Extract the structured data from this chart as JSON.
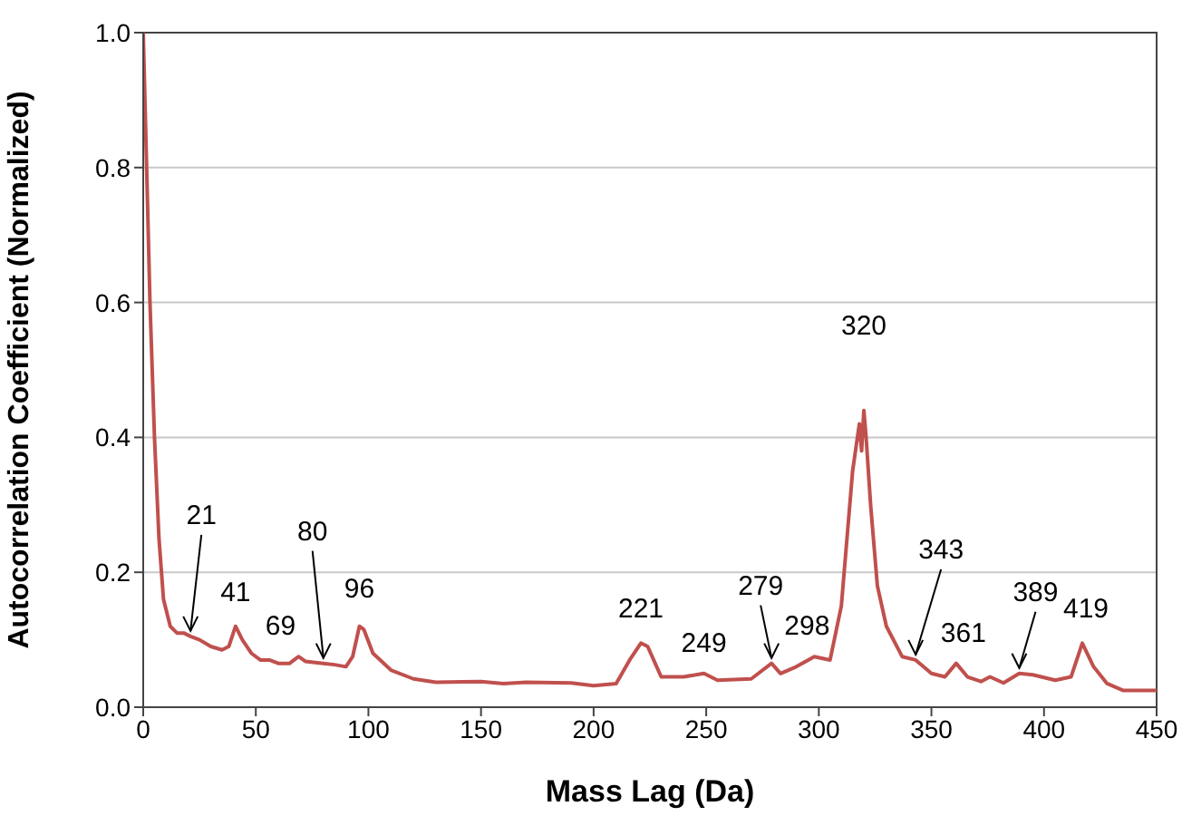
{
  "chart_data": {
    "type": "line",
    "xlabel": "Mass Lag (Da)",
    "ylabel": "Autocorrelation Coefficient (Normalized)",
    "xlim": [
      0,
      450
    ],
    "xticks": [
      0,
      50,
      100,
      150,
      200,
      250,
      300,
      350,
      400,
      450
    ],
    "ylim": [
      0,
      1
    ],
    "yticks": [
      {
        "value": 0,
        "label": "0.0"
      },
      0.2,
      0.4,
      0.6,
      0.8,
      {
        "value": 1,
        "label": "1.0"
      }
    ],
    "grid": "y",
    "marker": "none",
    "line_style": "solid",
    "x": [
      0,
      1,
      3,
      5,
      7,
      9,
      12,
      15,
      18,
      21,
      25,
      30,
      35,
      38,
      41,
      44,
      48,
      52,
      56,
      60,
      65,
      69,
      72,
      80,
      85,
      90,
      93,
      96,
      98,
      102,
      110,
      120,
      130,
      150,
      160,
      170,
      190,
      200,
      210,
      216,
      221,
      224,
      228,
      230,
      240,
      249,
      255,
      270,
      279,
      283,
      290,
      298,
      305,
      310,
      315,
      318,
      319,
      320,
      321,
      323,
      326,
      330,
      337,
      343,
      350,
      356,
      361,
      366,
      372,
      376,
      382,
      389,
      395,
      405,
      412,
      417,
      422,
      428,
      435,
      450
    ],
    "series": [
      {
        "color": "#c0504d",
        "values": [
          1.0,
          0.87,
          0.6,
          0.4,
          0.25,
          0.16,
          0.12,
          0.11,
          0.11,
          0.105,
          0.1,
          0.09,
          0.085,
          0.09,
          0.12,
          0.1,
          0.08,
          0.07,
          0.07,
          0.065,
          0.065,
          0.075,
          0.068,
          0.065,
          0.063,
          0.06,
          0.075,
          0.12,
          0.115,
          0.08,
          0.055,
          0.042,
          0.037,
          0.038,
          0.035,
          0.037,
          0.036,
          0.032,
          0.035,
          0.07,
          0.095,
          0.09,
          0.06,
          0.045,
          0.045,
          0.05,
          0.04,
          0.042,
          0.065,
          0.05,
          0.06,
          0.075,
          0.07,
          0.15,
          0.35,
          0.42,
          0.38,
          0.44,
          0.4,
          0.3,
          0.18,
          0.12,
          0.075,
          0.07,
          0.05,
          0.045,
          0.065,
          0.045,
          0.038,
          0.045,
          0.036,
          0.05,
          0.048,
          0.04,
          0.045,
          0.095,
          0.06,
          0.035,
          0.025,
          0.025
        ]
      }
    ],
    "annotations": [
      {
        "text": "21",
        "x": 21,
        "y": 0.105
      },
      {
        "text": "41",
        "x": 41,
        "y": 0.12
      },
      {
        "text": "69",
        "x": 69,
        "y": 0.075
      },
      {
        "text": "80",
        "x": 80,
        "y": 0.065
      },
      {
        "text": "96",
        "x": 96,
        "y": 0.12
      },
      {
        "text": "221",
        "x": 221,
        "y": 0.095
      },
      {
        "text": "249",
        "x": 249,
        "y": 0.05
      },
      {
        "text": "279",
        "x": 279,
        "y": 0.065
      },
      {
        "text": "298",
        "x": 298,
        "y": 0.075
      },
      {
        "text": "320",
        "x": 320,
        "y": 0.44
      },
      {
        "text": "343",
        "x": 343,
        "y": 0.07
      },
      {
        "text": "361",
        "x": 361,
        "y": 0.065
      },
      {
        "text": "389",
        "x": 389,
        "y": 0.05
      },
      {
        "text": "419",
        "x": 417,
        "y": 0.095
      }
    ]
  }
}
